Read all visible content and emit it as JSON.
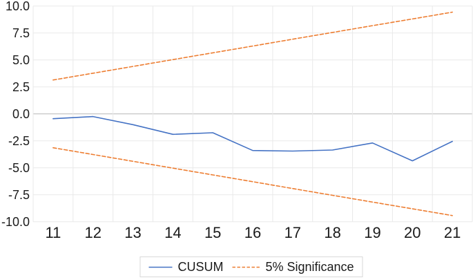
{
  "chart_data": {
    "type": "line",
    "title": "",
    "xlabel": "",
    "ylabel": "",
    "x": [
      11,
      12,
      13,
      14,
      15,
      16,
      17,
      18,
      19,
      20,
      21
    ],
    "x_tick_labels": [
      "11",
      "12",
      "13",
      "14",
      "15",
      "16",
      "17",
      "18",
      "19",
      "20",
      "21"
    ],
    "y_tick_labels": [
      "10.0",
      "7.5",
      "5.0",
      "2.5",
      "0.0",
      "-2.5",
      "-5.0",
      "-7.5",
      "-10.0"
    ],
    "ylim": [
      -10,
      10
    ],
    "ytick_step": 2.5,
    "grid": true,
    "legend_position": "bottom",
    "series": [
      {
        "name": "CUSUM",
        "color": "#4472C4",
        "style": "solid",
        "values": [
          -0.45,
          -0.25,
          -1.0,
          -1.9,
          -1.75,
          -3.4,
          -3.45,
          -3.35,
          -2.7,
          -4.35,
          -2.55
        ]
      },
      {
        "name": "5% Significance (upper bound)",
        "color": "#ED7D31",
        "style": "dashed",
        "values": [
          3.14,
          3.77,
          4.4,
          5.03,
          5.66,
          6.29,
          6.92,
          7.55,
          8.18,
          8.8,
          9.43
        ]
      },
      {
        "name": "5% Significance (lower bound)",
        "color": "#ED7D31",
        "style": "dashed",
        "values": [
          -3.14,
          -3.77,
          -4.4,
          -5.03,
          -5.66,
          -6.29,
          -6.92,
          -7.55,
          -8.18,
          -8.8,
          -9.43
        ]
      }
    ]
  },
  "legend": {
    "items": [
      {
        "label": "CUSUM",
        "series_index": 0
      },
      {
        "label": "5% Significance",
        "series_index": 1
      }
    ]
  },
  "colors": {
    "cusum_line": "#4472C4",
    "significance_line": "#ED7D31",
    "gridline": "#E9E9E9",
    "zero_axis_line": "#BFBFBF",
    "axis_text": "#1A1A1A",
    "legend_border": "#D9D9D9",
    "background": "#FFFFFF"
  }
}
